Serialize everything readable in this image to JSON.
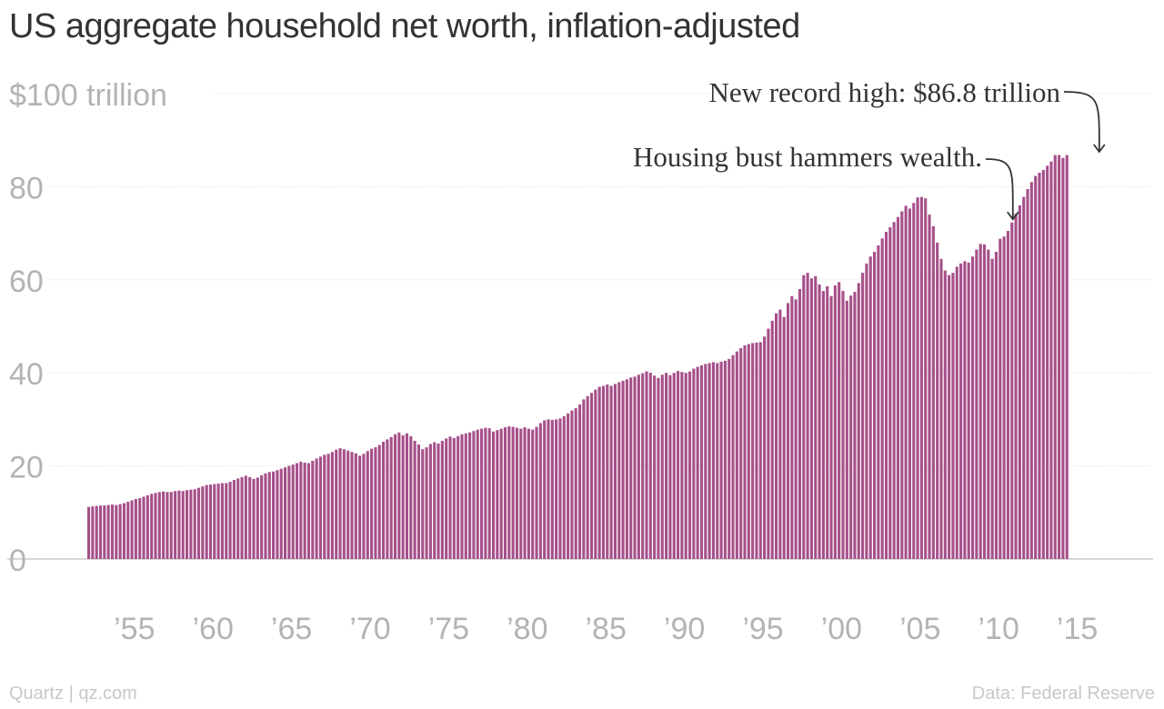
{
  "title": "US aggregate household net worth, inflation-adjusted",
  "footer": {
    "credit": "Quartz | qz.com",
    "source": "Data: Federal Reserve"
  },
  "chart_data": {
    "type": "bar",
    "title": "US aggregate household net worth, inflation-adjusted",
    "xlabel": "",
    "ylabel": "",
    "ylim": [
      0,
      100
    ],
    "yticks": [
      {
        "value": 0,
        "label": "0"
      },
      {
        "value": 20,
        "label": "20"
      },
      {
        "value": 40,
        "label": "40"
      },
      {
        "value": 60,
        "label": "60"
      },
      {
        "value": 80,
        "label": "80"
      },
      {
        "value": 100,
        "label": "$100 trillion"
      }
    ],
    "xticks": [
      {
        "year": 1955,
        "label": "’55"
      },
      {
        "year": 1960,
        "label": "’60"
      },
      {
        "year": 1965,
        "label": "’65"
      },
      {
        "year": 1970,
        "label": "’70"
      },
      {
        "year": 1975,
        "label": "’75"
      },
      {
        "year": 1980,
        "label": "’80"
      },
      {
        "year": 1985,
        "label": "’85"
      },
      {
        "year": 1990,
        "label": "’90"
      },
      {
        "year": 1995,
        "label": "’95"
      },
      {
        "year": 2000,
        "label": "’00"
      },
      {
        "year": 2005,
        "label": "’05"
      },
      {
        "year": 2010,
        "label": "’10"
      },
      {
        "year": 2015,
        "label": "’15"
      }
    ],
    "grid": true,
    "bar_color": "#a6508a",
    "x_start": "1952-Q1",
    "frequency": "quarterly",
    "values": [
      11.2,
      11.3,
      11.4,
      11.5,
      11.5,
      11.6,
      11.7,
      11.6,
      11.8,
      12.0,
      12.3,
      12.6,
      12.9,
      13.1,
      13.4,
      13.7,
      14.0,
      14.2,
      14.4,
      14.5,
      14.4,
      14.4,
      14.6,
      14.7,
      14.6,
      14.8,
      14.9,
      15.0,
      15.3,
      15.6,
      15.9,
      16.0,
      16.1,
      16.2,
      16.3,
      16.3,
      16.6,
      17.0,
      17.3,
      17.6,
      17.9,
      17.6,
      17.2,
      17.5,
      18.0,
      18.4,
      18.7,
      18.8,
      19.1,
      19.4,
      19.7,
      20.0,
      20.3,
      20.6,
      20.9,
      20.7,
      20.6,
      21.1,
      21.6,
      22.0,
      22.4,
      22.6,
      23.0,
      23.5,
      23.8,
      23.6,
      23.3,
      23.0,
      22.7,
      22.2,
      22.6,
      23.2,
      23.7,
      24.0,
      24.5,
      25.2,
      25.7,
      26.2,
      26.8,
      27.2,
      26.6,
      27.0,
      26.4,
      25.4,
      24.6,
      23.6,
      24.0,
      24.7,
      25.1,
      24.8,
      25.4,
      25.9,
      26.3,
      26.0,
      26.4,
      26.8,
      27.0,
      27.2,
      27.5,
      27.8,
      28.0,
      28.2,
      28.1,
      27.4,
      27.7,
      28.0,
      28.3,
      28.5,
      28.4,
      28.2,
      28.0,
      28.3,
      28.0,
      27.8,
      28.4,
      29.2,
      29.8,
      30.0,
      29.9,
      30.0,
      30.2,
      30.7,
      31.3,
      31.9,
      32.4,
      33.2,
      34.3,
      35.0,
      35.7,
      36.4,
      37.0,
      37.2,
      37.5,
      37.2,
      37.6,
      38.0,
      38.3,
      38.6,
      39.0,
      39.2,
      39.6,
      39.9,
      40.3,
      40.0,
      39.4,
      38.9,
      39.6,
      40.0,
      39.5,
      40.0,
      40.4,
      40.2,
      40.0,
      40.3,
      40.9,
      41.3,
      41.6,
      41.9,
      42.1,
      42.3,
      42.1,
      42.4,
      42.6,
      43.0,
      43.8,
      44.6,
      45.3,
      45.9,
      46.2,
      46.4,
      46.5,
      46.6,
      47.8,
      49.5,
      51.2,
      52.8,
      53.6,
      52.0,
      55.0,
      56.5,
      55.8,
      58.0,
      61.0,
      61.5,
      60.3,
      60.8,
      59.0,
      57.6,
      58.6,
      56.5,
      58.8,
      59.5,
      57.6,
      55.5,
      56.6,
      57.4,
      59.3,
      61.5,
      63.5,
      65.0,
      66.0,
      67.4,
      68.9,
      70.3,
      71.3,
      72.4,
      73.5,
      74.7,
      75.9,
      75.3,
      76.5,
      77.7,
      77.8,
      77.5,
      74.0,
      71.5,
      68.0,
      64.5,
      62.0,
      61.0,
      61.5,
      62.8,
      63.5,
      64.0,
      63.7,
      65.0,
      66.5,
      67.7,
      67.6,
      66.5,
      64.5,
      66.0,
      68.8,
      69.3,
      70.5,
      72.3,
      74.2,
      76.0,
      77.8,
      79.5,
      81.0,
      82.3,
      83.0,
      83.6,
      84.5,
      85.4,
      86.8,
      86.8,
      86.2,
      86.8
    ]
  },
  "annotations": [
    {
      "text": "Housing bust hammers wealth.",
      "x_year": 2010.9,
      "y_value": 73
    },
    {
      "text": "New record high: $86.8 trillion",
      "x_year": 2016.4,
      "y_value": 87.5
    }
  ]
}
